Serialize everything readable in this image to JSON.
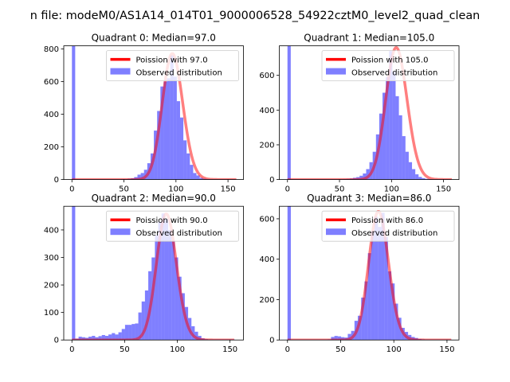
{
  "chart_data": {
    "type": "bar",
    "suptitle": "n file: modeM0/AS1A14_014T01_9000006528_54922cztM0_level2_quad_clean",
    "legend": {
      "curve_label_prefix": "Poission with ",
      "hist_label": "Observed distribution",
      "placement": "top-right"
    },
    "colors": {
      "hist": "#0000ff",
      "curve": "#ff0000"
    },
    "bin_width": 3.15,
    "subplots": [
      {
        "title": "Quadrant 0: Median=97.0",
        "lambda": 97.0,
        "curve_label": "Poission with 97.0",
        "curve_count": 6050,
        "xlim": [
          -7.85,
          164.85
        ],
        "ylim": [
          0,
          819
        ],
        "xticks": [
          0,
          50,
          100,
          150
        ],
        "yticks": [
          0,
          200,
          400,
          600,
          800
        ],
        "hist": [
          820,
          2,
          2,
          2,
          2,
          2,
          2,
          2,
          2,
          2,
          2,
          2,
          2,
          2,
          2,
          3,
          3,
          5,
          8,
          15,
          30,
          40,
          60,
          100,
          160,
          300,
          420,
          570,
          600,
          620,
          760,
          630,
          480,
          380,
          240,
          160,
          90,
          40,
          25,
          10,
          5,
          3,
          2,
          2,
          2,
          2,
          2,
          2,
          2,
          2
        ]
      },
      {
        "title": "Quadrant 1: Median=105.0",
        "lambda": 105.0,
        "curve_label": "Poission with 105.0",
        "curve_count": 6200,
        "xlim": [
          -7.85,
          164.85
        ],
        "ylim": [
          0,
          770
        ],
        "xticks": [
          0,
          50,
          100,
          150
        ],
        "yticks": [
          0,
          200,
          400,
          600
        ],
        "hist": [
          780,
          2,
          2,
          2,
          2,
          2,
          2,
          2,
          2,
          2,
          2,
          2,
          2,
          2,
          2,
          2,
          2,
          3,
          4,
          6,
          10,
          14,
          22,
          35,
          60,
          100,
          160,
          260,
          380,
          500,
          590,
          740,
          620,
          480,
          370,
          250,
          160,
          100,
          60,
          30,
          15,
          8,
          4,
          3,
          2,
          2,
          2,
          2,
          2,
          2
        ]
      },
      {
        "title": "Quadrant 2: Median=90.0",
        "lambda": 90.0,
        "curve_label": "Poission with 90.0",
        "curve_count": 3460,
        "xlim": [
          -7.75,
          162.75
        ],
        "ylim": [
          0,
          486
        ],
        "xticks": [
          0,
          50,
          100,
          150
        ],
        "yticks": [
          0,
          100,
          200,
          300,
          400
        ],
        "hist": [
          490,
          5,
          12,
          10,
          8,
          12,
          15,
          10,
          14,
          18,
          15,
          20,
          25,
          20,
          28,
          40,
          55,
          55,
          58,
          60,
          100,
          140,
          180,
          250,
          300,
          380,
          430,
          460,
          440,
          400,
          360,
          300,
          230,
          170,
          120,
          80,
          50,
          30,
          15,
          6,
          3,
          2,
          2,
          2,
          2,
          2,
          2,
          2,
          2
        ]
      },
      {
        "title": "Quadrant 3: Median=86.0",
        "lambda": 86.0,
        "curve_label": "Poission with 86.0",
        "curve_count": 4700,
        "xlim": [
          -7.7,
          161.3
        ],
        "ylim": [
          0,
          662
        ],
        "xticks": [
          0,
          50,
          100,
          150
        ],
        "yticks": [
          0,
          200,
          400,
          600
        ],
        "hist": [
          670,
          2,
          2,
          2,
          2,
          2,
          2,
          2,
          2,
          2,
          2,
          2,
          3,
          15,
          20,
          18,
          14,
          12,
          30,
          45,
          95,
          120,
          210,
          290,
          430,
          540,
          610,
          560,
          630,
          510,
          340,
          280,
          180,
          110,
          60,
          40,
          25,
          15,
          10,
          5,
          3,
          2,
          2,
          2,
          2,
          2,
          2,
          2,
          2
        ]
      }
    ]
  }
}
